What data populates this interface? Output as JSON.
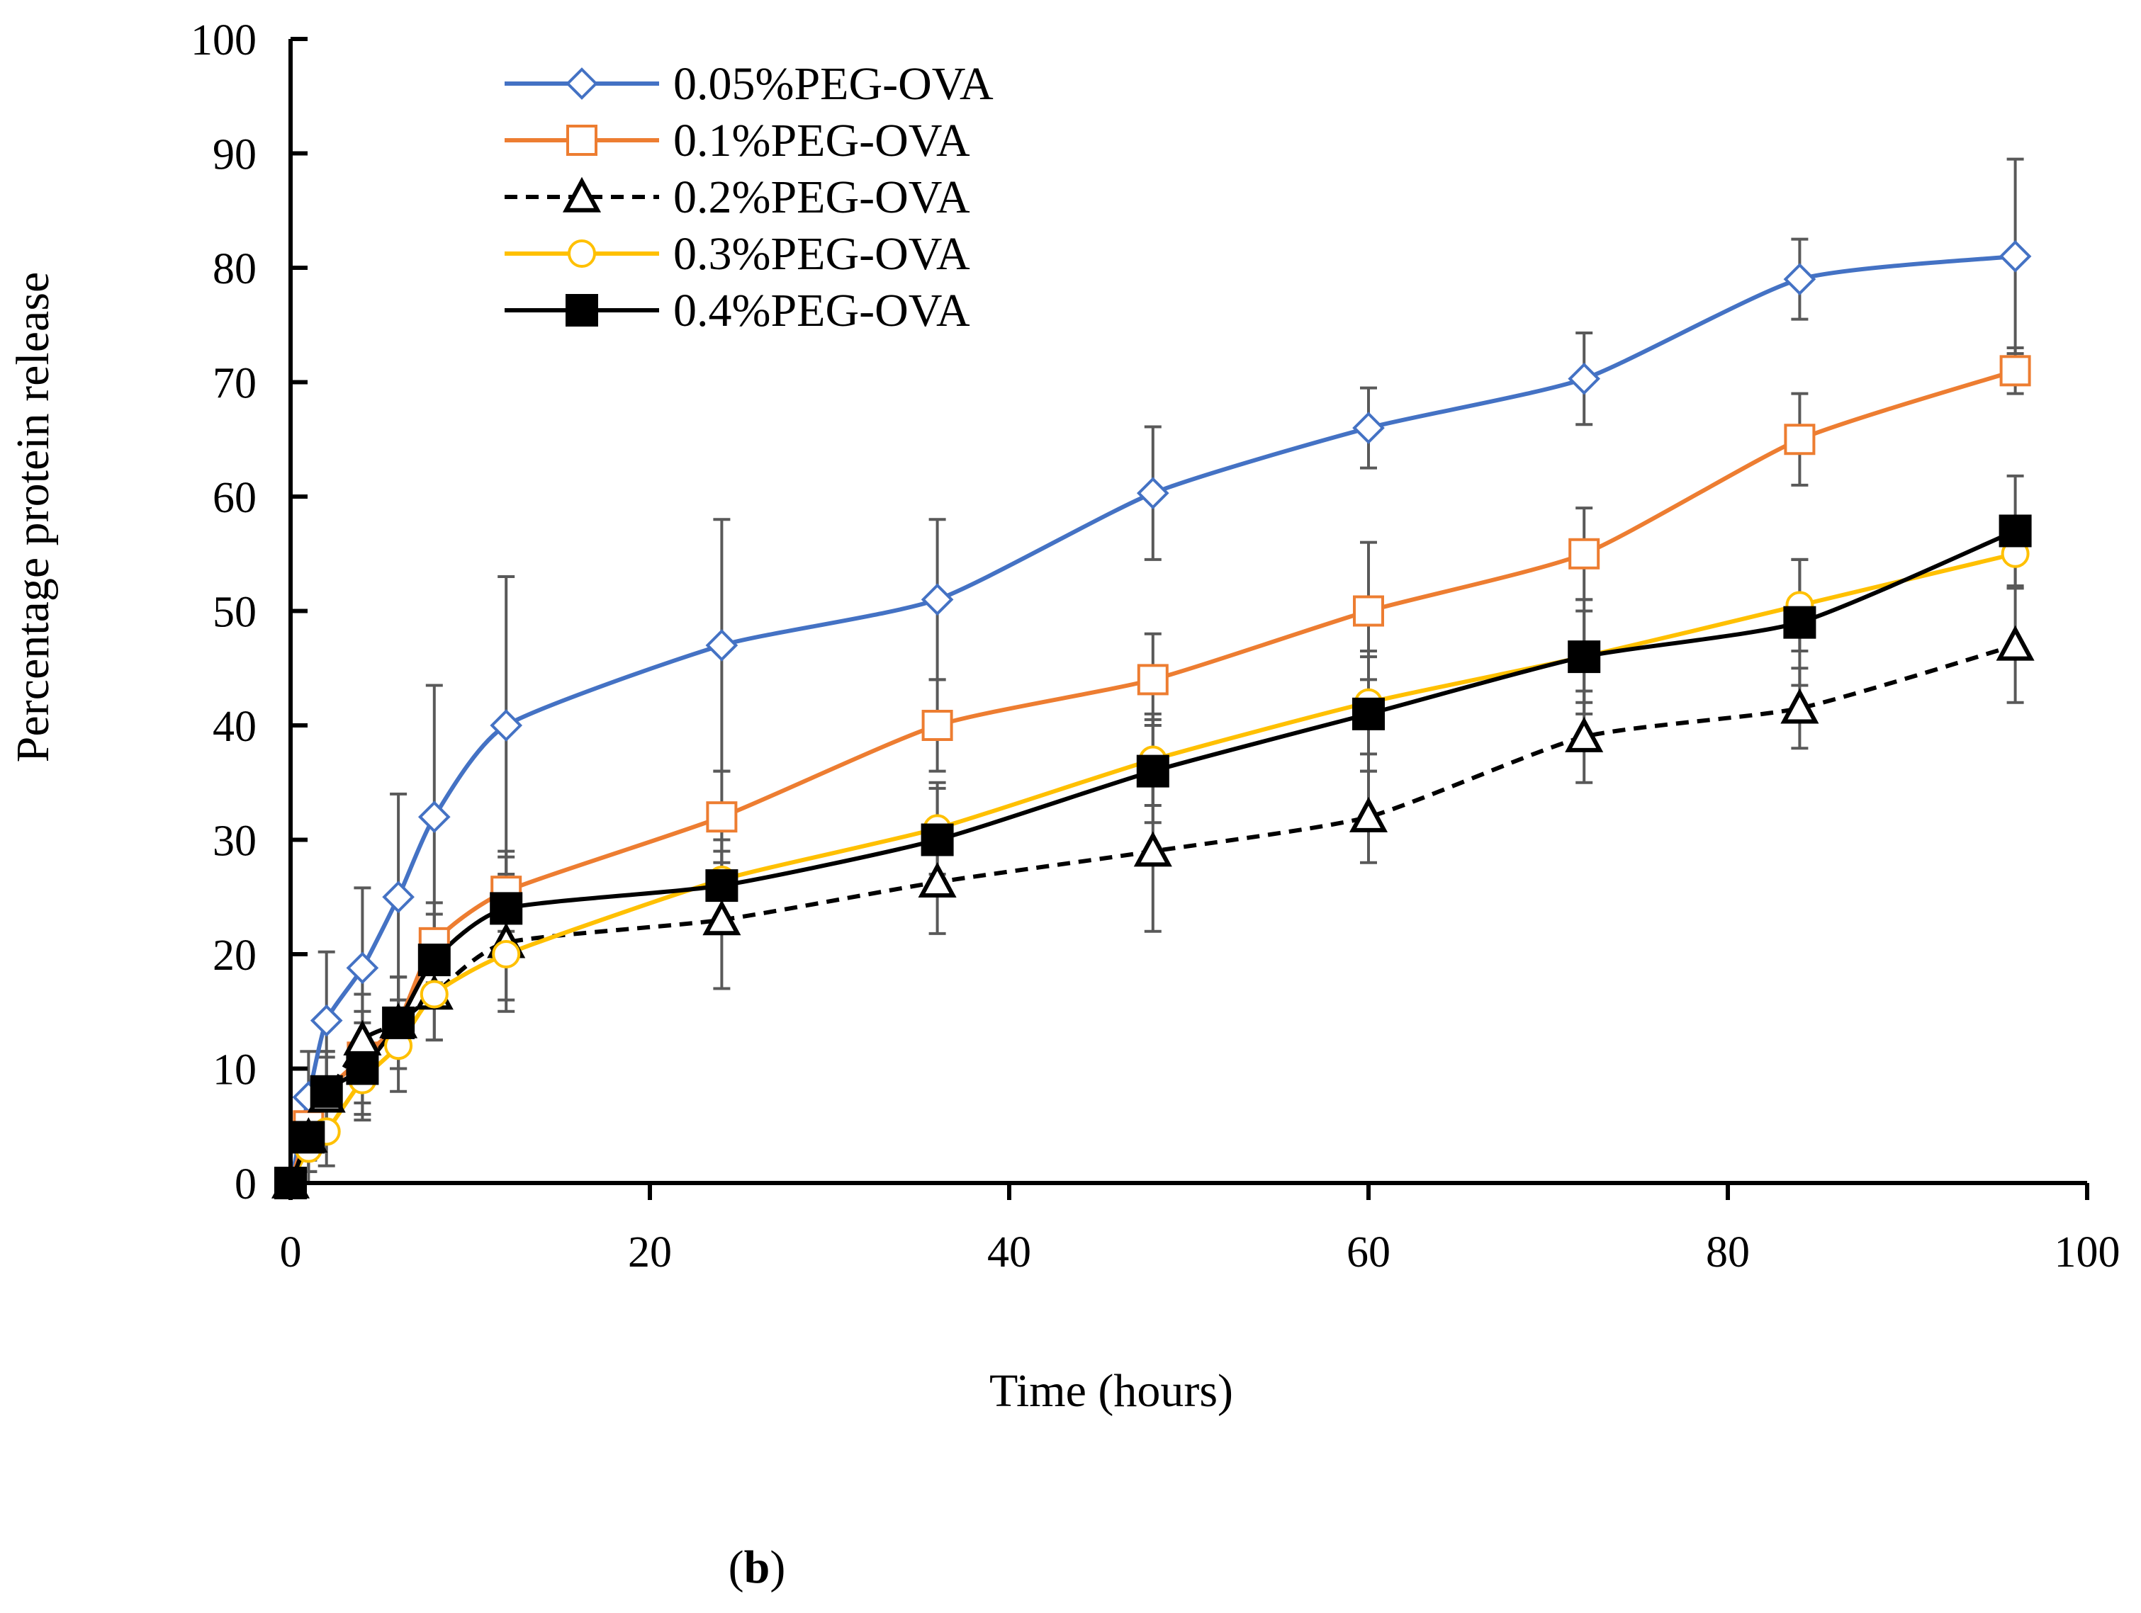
{
  "chart_data": {
    "type": "line",
    "title": "",
    "xlabel": "Time (hours)",
    "ylabel": "Percentage protein release",
    "xlim": [
      0,
      100
    ],
    "ylim": [
      0,
      100
    ],
    "xticks": [
      0,
      20,
      40,
      60,
      80,
      100
    ],
    "yticks": [
      0,
      10,
      20,
      30,
      40,
      50,
      60,
      70,
      80,
      90,
      100
    ],
    "grid": false,
    "legend_position": "top-left",
    "panel_label": {
      "open": "(",
      "letter": "b",
      "close": ")"
    },
    "x": [
      0,
      1,
      2,
      4,
      6,
      8,
      12,
      24,
      36,
      48,
      60,
      72,
      84,
      96
    ],
    "series": [
      {
        "name": "0.05%PEG-OVA",
        "color": "#4472C4",
        "marker": "diamond-open",
        "dash": "solid",
        "values": [
          0,
          7.5,
          14.2,
          18.8,
          25,
          32,
          40,
          47,
          51,
          60.3,
          66,
          70.3,
          79,
          81
        ],
        "errors": [
          0,
          4,
          6,
          7,
          9,
          11.5,
          13,
          11,
          7,
          5.8,
          3.5,
          4,
          3.5,
          8.5
        ]
      },
      {
        "name": "0.1%PEG-OVA",
        "color": "#ED7D31",
        "marker": "square-open",
        "dash": "solid",
        "values": [
          0,
          5,
          8,
          11,
          14,
          21,
          25.5,
          32,
          40,
          44,
          50,
          55,
          65,
          71
        ],
        "errors": [
          0,
          3,
          3.5,
          4,
          4,
          3.5,
          3.5,
          4,
          4,
          4,
          6,
          4,
          4,
          2
        ]
      },
      {
        "name": "0.2%PEG-OVA",
        "color": "#000000",
        "marker": "triangle-open",
        "dash": "dashed",
        "values": [
          0,
          4,
          7.5,
          12.5,
          14,
          16.5,
          21,
          23,
          26.3,
          29,
          32,
          39,
          41.5,
          47
        ],
        "errors": [
          0,
          3,
          3.5,
          4,
          4,
          4,
          5,
          6,
          4.5,
          7,
          4,
          4,
          3.5,
          5
        ]
      },
      {
        "name": "0.3%PEG-OVA",
        "color": "#FFC000",
        "marker": "circle-open",
        "dash": "solid",
        "values": [
          0,
          3,
          4.5,
          9,
          12,
          16.5,
          20,
          26.5,
          31,
          37,
          42,
          46,
          50.5,
          55
        ],
        "errors": [
          0,
          3,
          3,
          3.5,
          4,
          4,
          5,
          4.5,
          4,
          4,
          4.5,
          4,
          4,
          3
        ]
      },
      {
        "name": "0.4%PEG-OVA",
        "color": "#000000",
        "marker": "square-filled",
        "dash": "solid",
        "values": [
          0,
          4,
          8,
          10,
          14,
          19.5,
          24,
          26,
          30,
          36,
          41,
          46,
          49,
          57
        ],
        "errors": [
          0,
          3,
          3.5,
          4,
          4,
          4,
          4.5,
          4,
          4.5,
          4.5,
          5,
          5,
          5.5,
          4.8
        ]
      }
    ]
  }
}
